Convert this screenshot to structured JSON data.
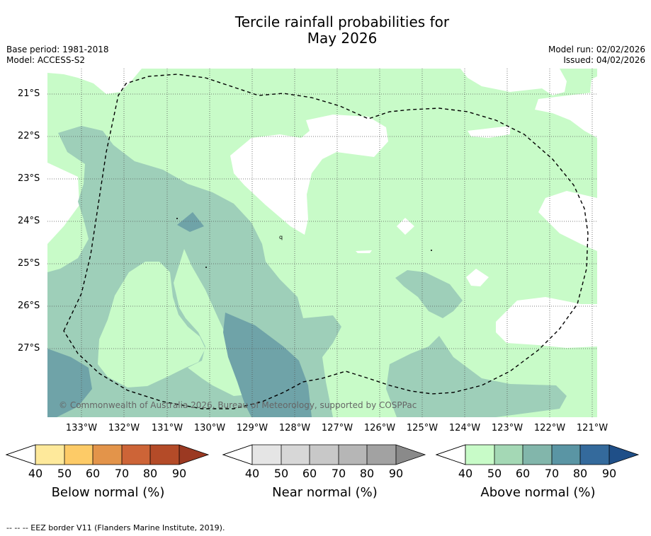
{
  "title": {
    "line1": "Tercile rainfall probabilities for",
    "line2": "May 2026"
  },
  "meta": {
    "base_period": "Base period: 1981-2018",
    "model": "Model: ACCESS-S2",
    "model_run": "Model run: 02/02/2026",
    "issued": "Issued: 04/02/2026"
  },
  "map": {
    "copyright": "© Commonwealth of Australia 2026, Bureau of Meteorology, supported by COSPPac",
    "lat_labels": [
      "21°S",
      "22°S",
      "23°S",
      "24°S",
      "25°S",
      "26°S",
      "27°S"
    ],
    "lon_labels": [
      "133°W",
      "132°W",
      "131°W",
      "130°W",
      "129°W",
      "128°W",
      "127°W",
      "126°W",
      "125°W",
      "124°W",
      "123°W",
      "122°W",
      "121°W"
    ],
    "stray_mark": "q",
    "colors": {
      "above_40_50": "#c8fbc8",
      "above_50_60": "#9ecfb9",
      "above_60_70": "#6fa3a8",
      "no_signal": "#ffffff"
    }
  },
  "legend": [
    {
      "title": "Below normal (%)",
      "ticks": [
        "40",
        "50",
        "60",
        "70",
        "80",
        "90"
      ],
      "colors": [
        "#fee99b",
        "#fdcb67",
        "#e3944a",
        "#cd6437",
        "#b44b28",
        "#9b3922"
      ]
    },
    {
      "title": "Near normal (%)",
      "ticks": [
        "40",
        "50",
        "60",
        "70",
        "80",
        "90"
      ],
      "colors": [
        "#e5e5e5",
        "#d7d7d7",
        "#c8c8c8",
        "#b6b6b6",
        "#a2a2a2",
        "#8a8a8a"
      ]
    },
    {
      "title": "Above normal (%)",
      "ticks": [
        "40",
        "50",
        "60",
        "70",
        "80",
        "90"
      ],
      "colors": [
        "#c8fbc8",
        "#a4d8b5",
        "#82b6ab",
        "#5a95a4",
        "#346a9c",
        "#1f4f88"
      ]
    }
  ],
  "footnote": "--  --  -- EEZ border V11 (Flanders Marine Institute, 2019)."
}
